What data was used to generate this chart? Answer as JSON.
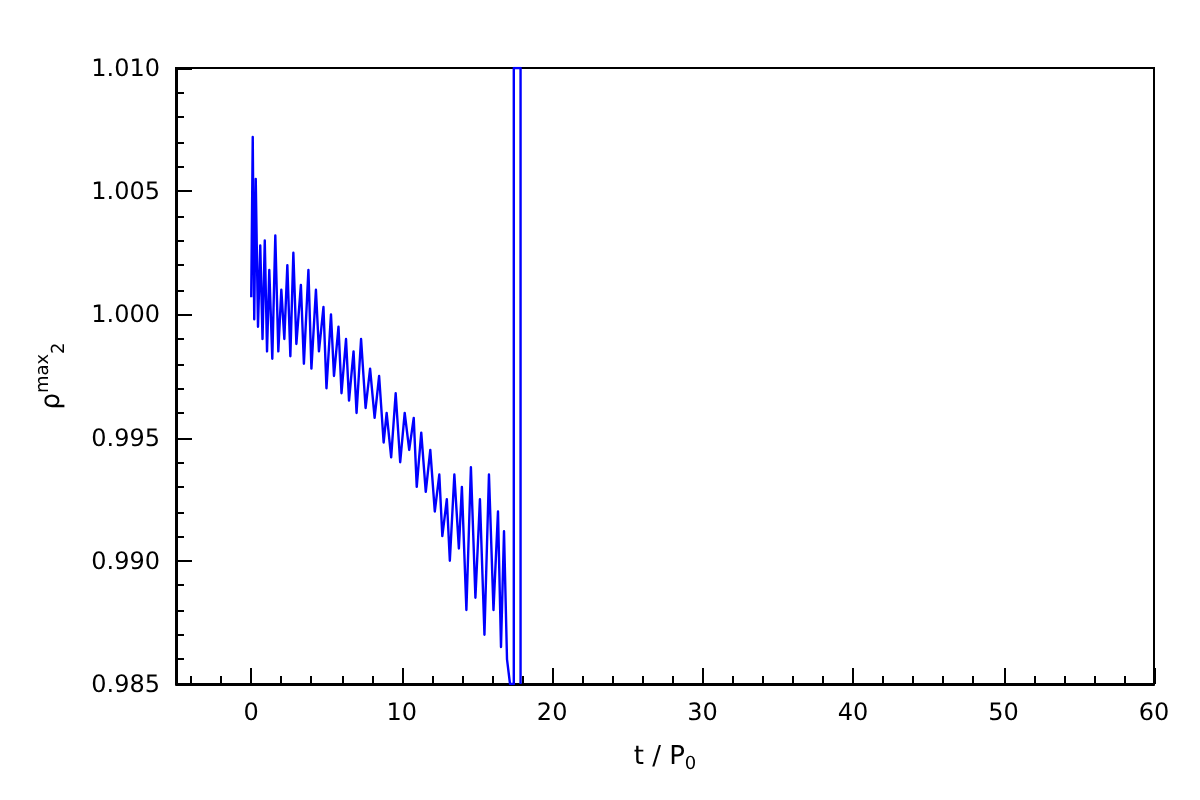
{
  "chart_data": {
    "type": "line",
    "xlabel": "t / P$_{0}$",
    "ylabel": "ρ$^{max}$$_{2}$",
    "xlim": [
      -5,
      60
    ],
    "xticks": [
      0,
      10,
      20,
      30,
      40,
      50,
      60
    ],
    "ylim": [
      0.985,
      1.01
    ],
    "yticks": [
      0.985,
      {
        "value": 0.99,
        "label": "0.990"
      },
      0.995,
      {
        "value": 1,
        "label": "1.000"
      },
      1.005,
      {
        "value": 1.01,
        "label": "1.010"
      }
    ],
    "marker": "none",
    "line_style": "solid",
    "series": [
      {
        "color": "#0000ff",
        "x": [
          0,
          0.1,
          0.2,
          0.3,
          0.45,
          0.6,
          0.75,
          0.9,
          1.05,
          1.2,
          1.4,
          1.6,
          1.8,
          2.0,
          2.2,
          2.4,
          2.6,
          2.8,
          3.0,
          3.3,
          3.5,
          3.8,
          4.0,
          4.3,
          4.5,
          4.8,
          5.0,
          5.3,
          5.5,
          5.8,
          6.0,
          6.3,
          6.5,
          6.8,
          7.0,
          7.3,
          7.6,
          7.9,
          8.2,
          8.5,
          8.8,
          9.0,
          9.3,
          9.6,
          9.9,
          10.2,
          10.5,
          10.8,
          11.0,
          11.3,
          11.6,
          11.9,
          12.2,
          12.5,
          12.7,
          13.0,
          13.2,
          13.5,
          13.8,
          14.0,
          14.3,
          14.6,
          14.9,
          15.2,
          15.5,
          15.8,
          16.1,
          16.4,
          16.6,
          16.8,
          17.0,
          17.2,
          17.45,
          17.45,
          17.9,
          17.9
        ],
        "values": [
          1.0007,
          1.0072,
          0.9998,
          1.0055,
          0.9995,
          1.0028,
          0.999,
          1.003,
          0.9985,
          1.0018,
          0.9982,
          1.0032,
          0.9985,
          1.001,
          0.999,
          1.002,
          0.9983,
          1.0025,
          0.9988,
          1.0012,
          0.998,
          1.0018,
          0.9978,
          1.001,
          0.9985,
          1.0003,
          0.997,
          1.0,
          0.9975,
          0.9995,
          0.9968,
          0.999,
          0.9965,
          0.9985,
          0.996,
          0.999,
          0.9962,
          0.9978,
          0.9958,
          0.9975,
          0.9948,
          0.996,
          0.9942,
          0.9968,
          0.994,
          0.996,
          0.9945,
          0.9958,
          0.993,
          0.9952,
          0.9928,
          0.9945,
          0.992,
          0.9935,
          0.991,
          0.9925,
          0.99,
          0.9935,
          0.9905,
          0.993,
          0.988,
          0.9938,
          0.9885,
          0.9925,
          0.987,
          0.9935,
          0.988,
          0.992,
          0.9865,
          0.9912,
          0.986,
          0.985,
          0.985,
          1.01,
          1.01,
          0.985
        ]
      }
    ]
  }
}
